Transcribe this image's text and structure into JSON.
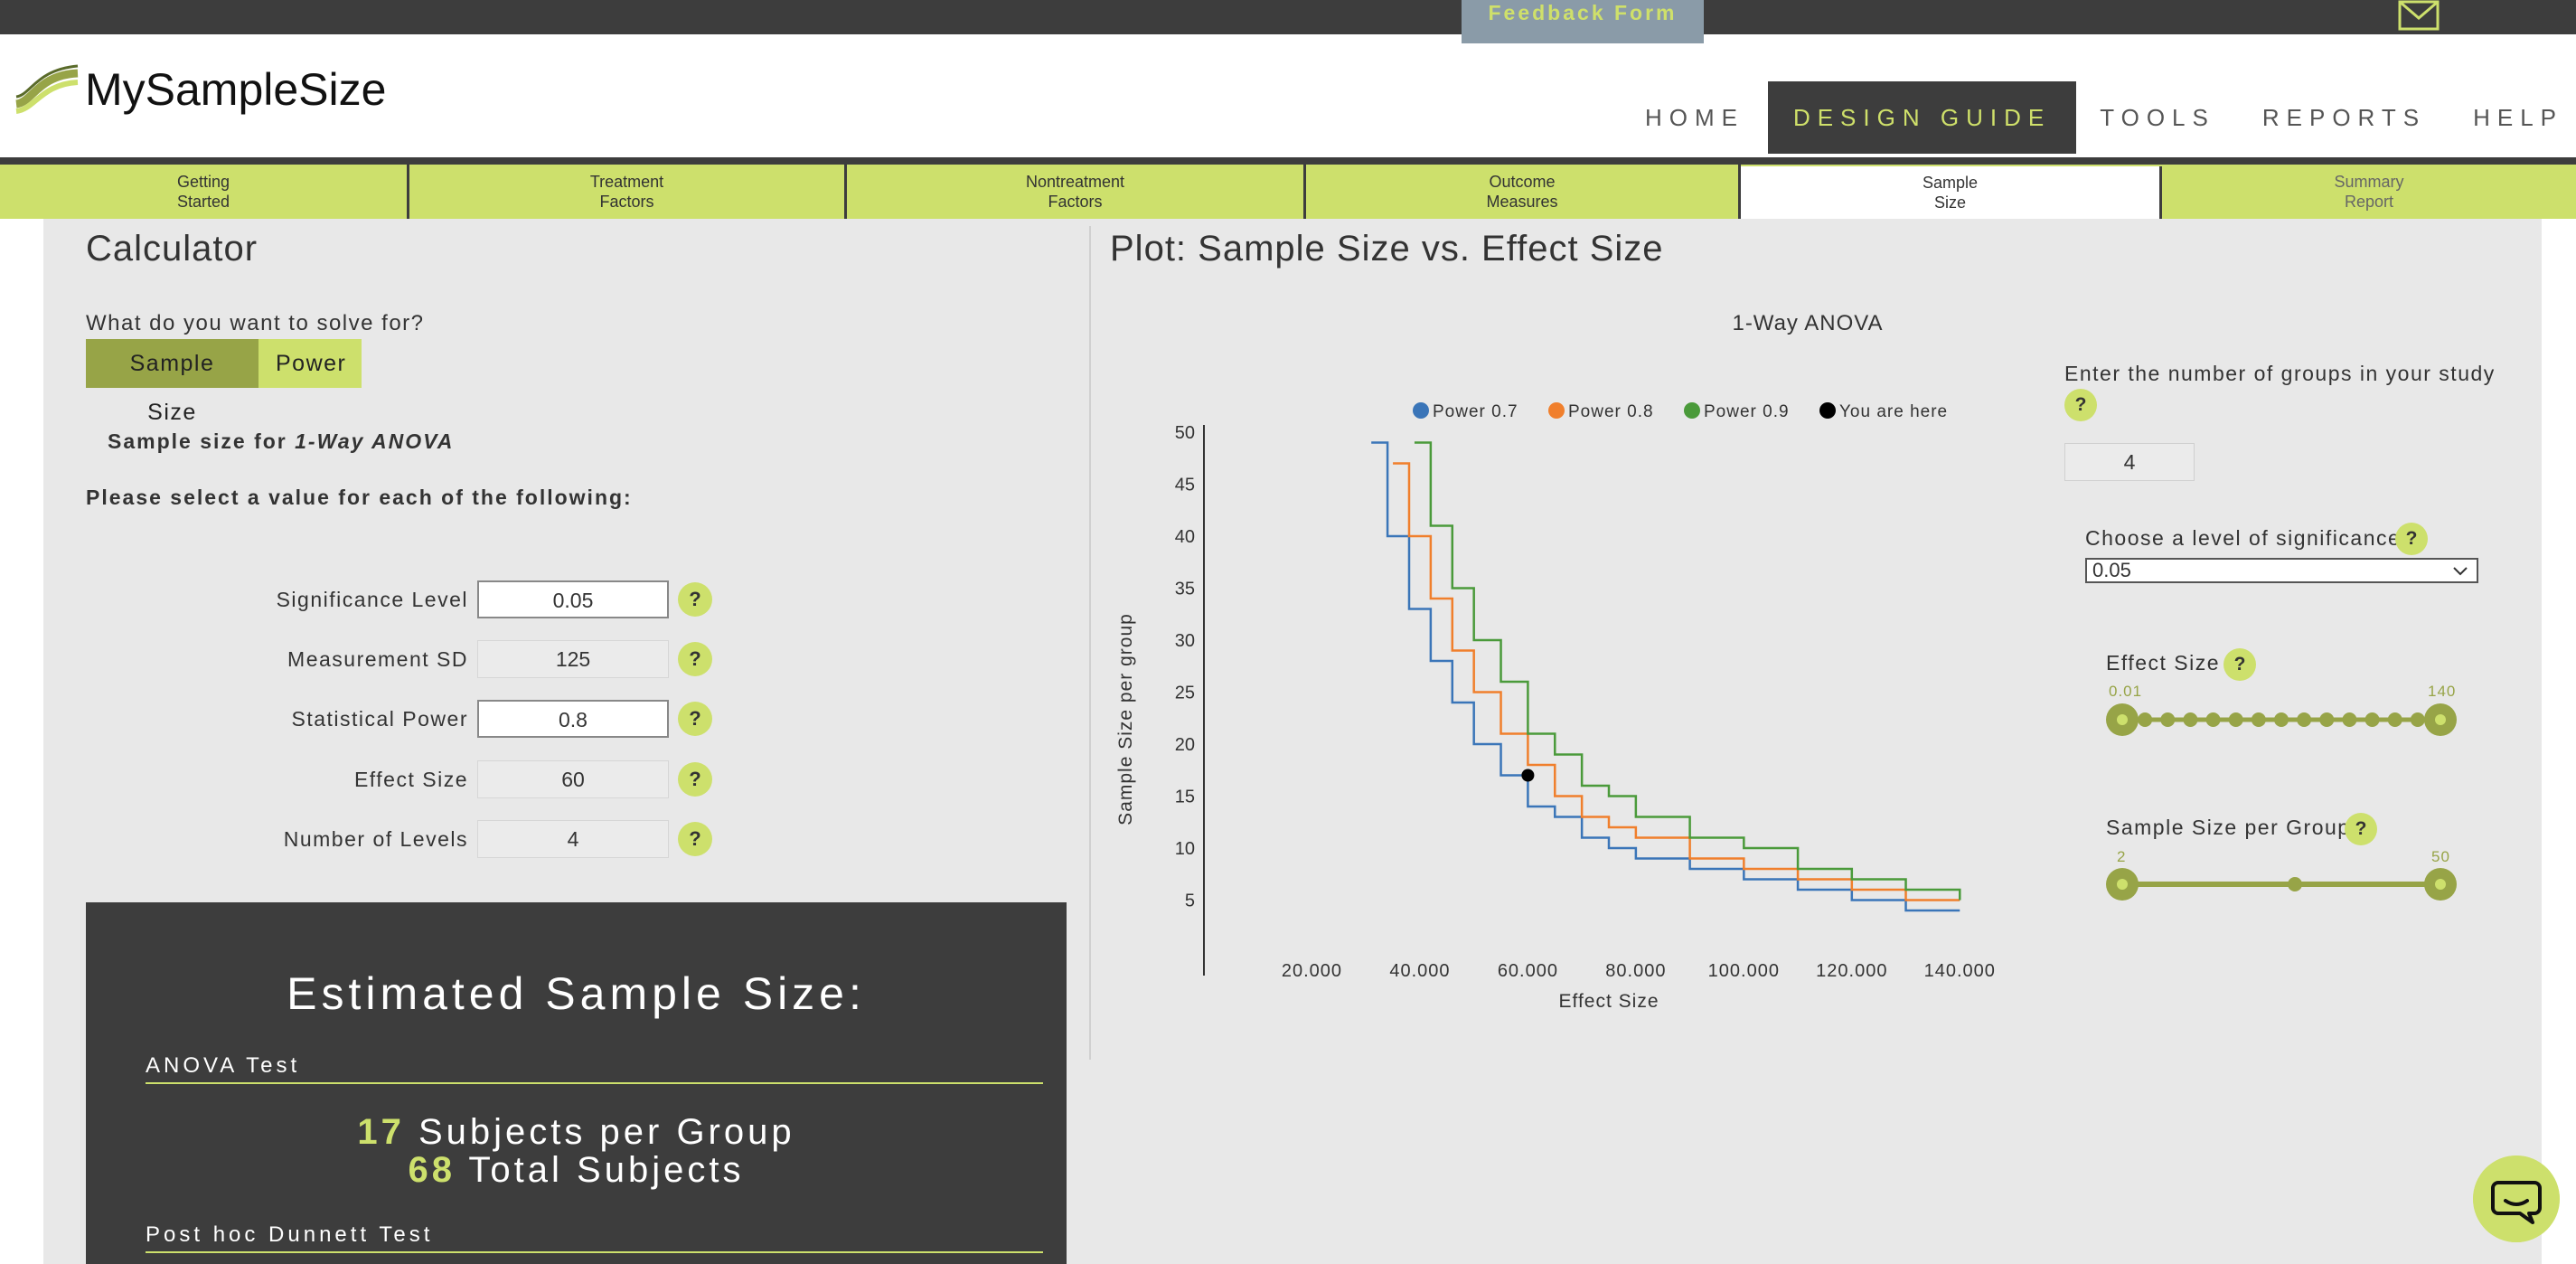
{
  "feedback_label": "Feedback Form",
  "logo_text": "MySampleSize",
  "nav": [
    {
      "label": "HOME",
      "active": false
    },
    {
      "label": "DESIGN GUIDE",
      "active": true
    },
    {
      "label": "TOOLS",
      "active": false
    },
    {
      "label": "REPORTS",
      "active": false
    },
    {
      "label": "HELP",
      "active": false
    }
  ],
  "tabs": [
    {
      "label": "Getting\nStarted"
    },
    {
      "label": "Treatment\nFactors"
    },
    {
      "label": "Nontreatment\nFactors"
    },
    {
      "label": "Outcome\nMeasures"
    },
    {
      "label": "Sample\nSize"
    },
    {
      "label": "Summary\nReport"
    }
  ],
  "calculator": {
    "heading": "Calculator",
    "solve_question": "What do you want to solve for?",
    "solve_options": [
      "Sample Size",
      "Power"
    ],
    "selected_option": "Sample Size",
    "ss_for_prefix": "Sample size for ",
    "ss_for_test": "1-Way ANOVA",
    "please_select": "Please select a value for each of the following:",
    "params": [
      {
        "label": "Significance Level",
        "value": "0.05",
        "editable": true
      },
      {
        "label": "Measurement SD",
        "value": "125",
        "editable": false
      },
      {
        "label": "Statistical Power",
        "value": "0.8",
        "editable": true
      },
      {
        "label": "Effect Size",
        "value": "60",
        "editable": false
      },
      {
        "label": "Number of Levels",
        "value": "4",
        "editable": false
      }
    ],
    "help_glyph": "?"
  },
  "results": {
    "title": "Estimated Sample Size:",
    "anova_label": "ANOVA Test",
    "per_group_value": "17",
    "per_group_label": " Subjects per Group",
    "total_value": "68",
    "total_label": " Total Subjects",
    "posthoc_label": "Post hoc Dunnett Test"
  },
  "plot": {
    "heading": "Plot: Sample Size vs. Effect Size",
    "groups_prompt": "Enter the number of groups in your study",
    "groups_value": "4",
    "significance_prompt": "Choose a level of significance",
    "significance_value": "0.05",
    "effect_slider": {
      "label": "Effect Size",
      "min_label": "0.01",
      "max_label": "140",
      "ticks": 15
    },
    "sample_slider": {
      "label": "Sample Size per Group",
      "min_label": "2",
      "max_label": "50"
    }
  },
  "chart_data": {
    "type": "line",
    "title": "1-Way ANOVA",
    "xlabel": "Effect Size",
    "ylabel": "Sample Size per group",
    "xlim": [
      0,
      150
    ],
    "ylim": [
      0,
      50
    ],
    "x_ticks": [
      "20.000",
      "40.000",
      "60.000",
      "80.000",
      "100.000",
      "120.000",
      "140.000"
    ],
    "x_tick_values": [
      20,
      40,
      60,
      80,
      100,
      120,
      140
    ],
    "y_ticks": [
      5,
      10,
      15,
      20,
      25,
      30,
      35,
      40,
      45,
      50
    ],
    "legend": [
      "Power 0.7",
      "Power 0.8",
      "Power 0.9",
      "You are here"
    ],
    "legend_colors": [
      "#3a75b8",
      "#f07f2c",
      "#4a9a3a",
      "#000000"
    ],
    "series": [
      {
        "name": "Power 0.7",
        "color": "#3a75b8",
        "x": [
          31,
          34,
          38,
          42,
          46,
          50,
          55,
          60,
          65,
          70,
          75,
          80,
          90,
          100,
          110,
          120,
          130,
          140
        ],
        "y": [
          49,
          40,
          33,
          28,
          24,
          20,
          17,
          14,
          13,
          11,
          10,
          9,
          8,
          7,
          6,
          5,
          4,
          4
        ]
      },
      {
        "name": "Power 0.8",
        "color": "#f07f2c",
        "x": [
          35,
          38,
          42,
          46,
          50,
          55,
          60,
          65,
          70,
          75,
          80,
          90,
          100,
          110,
          120,
          130,
          140
        ],
        "y": [
          47,
          40,
          34,
          29,
          25,
          21,
          18,
          15,
          13,
          12,
          11,
          9,
          8,
          7,
          6,
          5,
          5
        ]
      },
      {
        "name": "Power 0.9",
        "color": "#4a9a3a",
        "x": [
          39,
          42,
          46,
          50,
          55,
          60,
          65,
          70,
          75,
          80,
          90,
          100,
          110,
          120,
          130,
          140
        ],
        "y": [
          49,
          41,
          35,
          30,
          26,
          21,
          19,
          16,
          15,
          13,
          11,
          10,
          8,
          7,
          6,
          5
        ]
      }
    ],
    "marker": {
      "name": "You are here",
      "x": 60,
      "y": 17,
      "color": "#000000"
    }
  }
}
